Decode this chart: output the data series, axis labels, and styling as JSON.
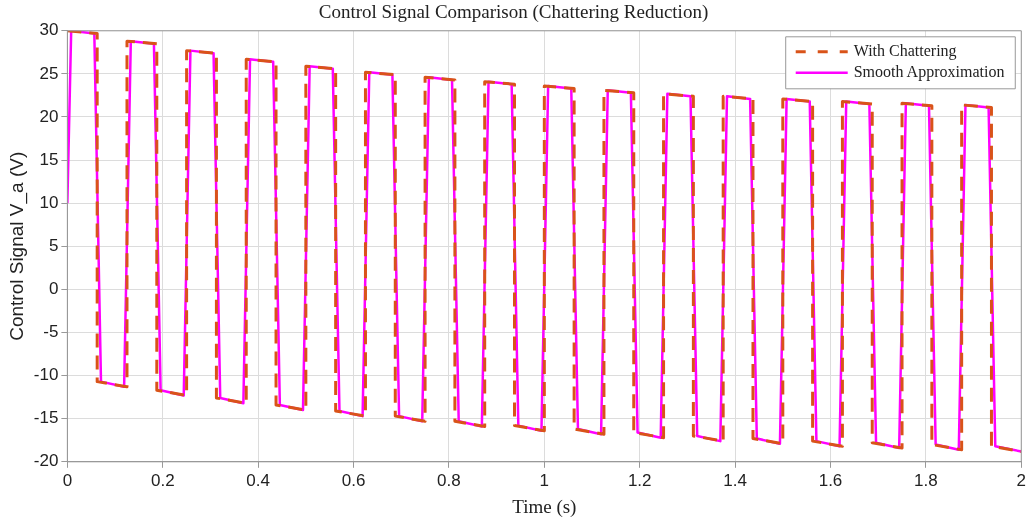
{
  "chart_data": {
    "type": "line",
    "title": "Control Signal Comparison (Chattering Reduction)",
    "xlabel": "Time (s)",
    "ylabel": "Control Signal V_a (V)",
    "xlim": [
      0,
      2
    ],
    "xticks": [
      0,
      0.2,
      0.4,
      0.6,
      0.8,
      1,
      1.2,
      1.4,
      1.6,
      1.8,
      2
    ],
    "ylim": [
      -20,
      30
    ],
    "yticks": [
      -20,
      -15,
      -10,
      -5,
      0,
      5,
      10,
      15,
      20,
      25,
      30
    ],
    "grid": true,
    "legend": "top right",
    "marker": "none",
    "series": [
      {
        "name": "With Chattering",
        "color": "#d95319",
        "line_style": "dashed",
        "x": [
          0,
          0.0625,
          0.0625,
          0.125,
          0.125,
          0.1875,
          0.1875,
          0.25,
          0.25,
          0.3125,
          0.3125,
          0.375,
          0.375,
          0.4375,
          0.4375,
          0.5,
          0.5,
          0.5625,
          0.5625,
          0.625,
          0.625,
          0.6875,
          0.6875,
          0.75,
          0.75,
          0.8125,
          0.8125,
          0.875,
          0.875,
          0.9375,
          0.9375,
          1,
          1,
          1.0625,
          1.0625,
          1.125,
          1.125,
          1.1875,
          1.1875,
          1.25,
          1.25,
          1.3125,
          1.3125,
          1.375,
          1.375,
          1.4375,
          1.4375,
          1.5,
          1.5,
          1.5625,
          1.5625,
          1.625,
          1.625,
          1.6875,
          1.6875,
          1.75,
          1.75,
          1.8125,
          1.8125,
          1.875,
          1.875,
          1.9375,
          1.9375,
          2
        ],
        "values": [
          30,
          29.7,
          -10.7,
          -11.3,
          28.8,
          28.5,
          -11.7,
          -12.3,
          27.7,
          27.4,
          -12.6,
          -13.2,
          26.7,
          26.4,
          -13.4,
          -14.0,
          25.9,
          25.6,
          -14.1,
          -14.7,
          25.2,
          24.9,
          -14.7,
          -15.3,
          24.6,
          24.3,
          -15.3,
          -15.9,
          24.1,
          23.8,
          -15.8,
          -16.4,
          23.6,
          23.3,
          -16.2,
          -16.8,
          23.1,
          22.8,
          -16.6,
          -17.2,
          22.7,
          22.4,
          -17.0,
          -17.6,
          22.4,
          22.1,
          -17.3,
          -17.9,
          22.1,
          21.8,
          -17.6,
          -18.2,
          21.8,
          21.5,
          -17.8,
          -18.4,
          21.6,
          21.3,
          -18.0,
          -18.6,
          21.4,
          21.1,
          -18.2,
          -18.8
        ]
      },
      {
        "name": "Smooth Approximation",
        "color": "#ff00ff",
        "line_style": "solid",
        "x": [
          0,
          0.008,
          0.0565,
          0.0705,
          0.119,
          0.133,
          0.1815,
          0.1955,
          0.244,
          0.258,
          0.3065,
          0.3205,
          0.369,
          0.383,
          0.4315,
          0.4455,
          0.494,
          0.508,
          0.5565,
          0.5705,
          0.619,
          0.633,
          0.6815,
          0.6955,
          0.744,
          0.758,
          0.8065,
          0.8205,
          0.869,
          0.883,
          0.9315,
          0.9455,
          0.994,
          1.008,
          1.0565,
          1.0705,
          1.119,
          1.133,
          1.1815,
          1.1955,
          1.244,
          1.258,
          1.3065,
          1.3205,
          1.369,
          1.383,
          1.4315,
          1.4455,
          1.494,
          1.508,
          1.5565,
          1.5705,
          1.619,
          1.633,
          1.6815,
          1.6955,
          1.744,
          1.758,
          1.8065,
          1.8205,
          1.869,
          1.883,
          1.9315,
          1.9455,
          2
        ],
        "values": [
          10,
          30,
          29.7,
          -10.7,
          -11.3,
          28.8,
          28.5,
          -11.7,
          -12.3,
          27.7,
          27.4,
          -12.6,
          -13.2,
          26.7,
          26.4,
          -13.4,
          -14.0,
          25.9,
          25.6,
          -14.1,
          -14.7,
          25.2,
          24.9,
          -14.7,
          -15.3,
          24.6,
          24.3,
          -15.3,
          -15.9,
          24.1,
          23.8,
          -15.8,
          -16.4,
          23.6,
          23.3,
          -16.2,
          -16.8,
          23.1,
          22.8,
          -16.6,
          -17.2,
          22.7,
          22.4,
          -17.0,
          -17.6,
          22.4,
          22.1,
          -17.3,
          -17.9,
          22.1,
          21.8,
          -17.6,
          -18.2,
          21.8,
          21.5,
          -17.8,
          -18.4,
          21.6,
          21.3,
          -18.0,
          -18.6,
          21.4,
          21.1,
          -18.2,
          -18.8
        ]
      }
    ]
  }
}
